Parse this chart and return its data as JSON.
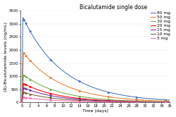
{
  "title": "Bicalutamide single dose",
  "xlabel": "Time (days)",
  "ylabel": "(R)-Bicalutamide levels (ng/mL)",
  "xlim": [
    -0.3,
    36
  ],
  "ylim": [
    0,
    3500
  ],
  "xticks": [
    0,
    2,
    4,
    6,
    8,
    10,
    12,
    14,
    16,
    18,
    20,
    22,
    24,
    26,
    28,
    30,
    32,
    34,
    36
  ],
  "yticks": [
    0,
    500,
    1000,
    1500,
    2000,
    2500,
    3000,
    3500
  ],
  "doses": [
    {
      "label": "80 mg",
      "color": "#4472C4",
      "c0": 3250,
      "t_peak": 0.25,
      "peak": 3250,
      "secondary": 2600,
      "t2": 0.8,
      "half_life": 6.8
    },
    {
      "label": "50 mg",
      "color": "#ED7D31",
      "c0": 1900,
      "t_peak": 0.4,
      "peak": 1900,
      "secondary": 1700,
      "t2": 1.0,
      "half_life": 6.5
    },
    {
      "label": "30 mg",
      "color": "#70AD47",
      "c0": 1050,
      "t_peak": 0.4,
      "peak": 1050,
      "secondary": 980,
      "t2": 1.0,
      "half_life": 6.2
    },
    {
      "label": "20 mg",
      "color": "#FF0000",
      "c0": 720,
      "t_peak": 0.4,
      "peak": 720,
      "secondary": 680,
      "t2": 1.0,
      "half_life": 6.0
    },
    {
      "label": "15 mg",
      "color": "#7030A0",
      "c0": 560,
      "t_peak": 0.4,
      "peak": 560,
      "secondary": 530,
      "t2": 1.0,
      "half_life": 5.9
    },
    {
      "label": "10 mg",
      "color": "#7B5A3A",
      "c0": 380,
      "t_peak": 0.4,
      "peak": 380,
      "secondary": 360,
      "t2": 1.0,
      "half_life": 5.7
    },
    {
      "label": "5 mg",
      "color": "#FF69B4",
      "c0": 190,
      "t_peak": 0.4,
      "peak": 190,
      "secondary": 180,
      "t2": 1.0,
      "half_life": 5.6
    }
  ],
  "marker_times": [
    0,
    0.5,
    1,
    2,
    7,
    14,
    21,
    28,
    35
  ],
  "background_color": "#FFFFFF",
  "title_fontsize": 5.5,
  "axis_fontsize": 4.5,
  "tick_fontsize": 3.8,
  "legend_fontsize": 4.2
}
